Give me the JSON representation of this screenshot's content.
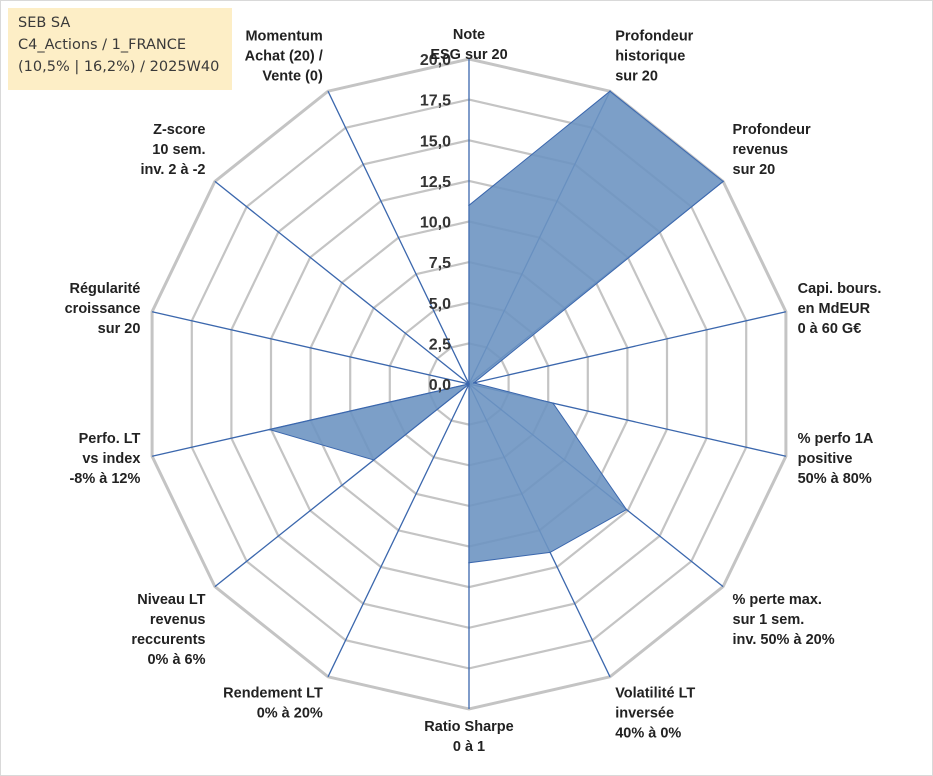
{
  "header": {
    "company": "SEB SA",
    "portfolio": "C4_Actions / 1_FRANCE",
    "details": "(10,5% | 16,2%) / 2025W40"
  },
  "chart_data": {
    "type": "radar",
    "title": "SEB SA",
    "rmax": 20,
    "rstep": 2.5,
    "tick_labels": [
      "0,0",
      "2,5",
      "5,0",
      "7,5",
      "10,0",
      "12,5",
      "15,0",
      "17,5",
      "20,0"
    ],
    "axes": [
      [
        "Note",
        "ESG sur 20"
      ],
      [
        "Profondeur",
        "historique",
        "sur 20"
      ],
      [
        "Profondeur",
        "revenus",
        "sur 20"
      ],
      [
        "Capi. bours.",
        "en MdEUR",
        "0 à 60 G€"
      ],
      [
        "% perfo 1A",
        "positive",
        "50% à 80%"
      ],
      [
        "% perte max.",
        "sur 1 sem.",
        "inv. 50% à 20%"
      ],
      [
        "Volatilité LT",
        "inversée",
        "40% à 0%"
      ],
      [
        "Ratio Sharpe",
        "0 à 1"
      ],
      [
        "Rendement LT",
        "0% à 20%"
      ],
      [
        "Niveau LT",
        "revenus",
        "reccurents",
        "0% à 6%"
      ],
      [
        "Perfo. LT",
        "vs index",
        "-8% à 12%"
      ],
      [
        "Régularité",
        "croissance",
        "sur 20"
      ],
      [
        "Z-score",
        "10 sem.",
        "inv. 2 à -2"
      ],
      [
        "Momentum",
        "Achat (20) /",
        "Vente (0)"
      ]
    ],
    "values": [
      11,
      20,
      20,
      0.3,
      5.3,
      12.4,
      11.5,
      11,
      0,
      7.5,
      12.6,
      0,
      0,
      0
    ],
    "fill_color": "#6e95c2",
    "line_color": "#3b67ad",
    "grid_color": "#c4c4c4"
  }
}
